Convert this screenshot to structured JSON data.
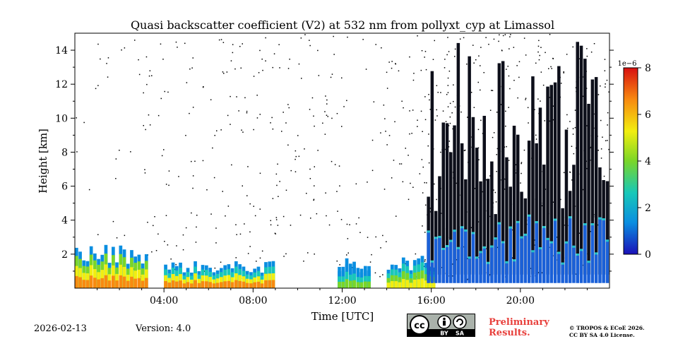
{
  "chart_data": {
    "type": "heatmap",
    "title": "Quasi backscatter coefficient (V2) at 532 nm from pollyxt_cyp at Limassol",
    "xlabel": "Time [UTC]",
    "ylabel": "Height [km]",
    "xlim": [
      0,
      24
    ],
    "ylim": [
      0,
      15
    ],
    "x_ticks": [
      4,
      8,
      12,
      16,
      20
    ],
    "x_tick_labels": [
      "04:00",
      "08:00",
      "12:00",
      "16:00",
      "20:00"
    ],
    "y_ticks": [
      2,
      4,
      6,
      8,
      10,
      12,
      14
    ],
    "y_tick_labels": [
      "2",
      "4",
      "6",
      "8",
      "10",
      "12",
      "14"
    ],
    "colorbar": {
      "min": 0,
      "max": 8,
      "scale_label": "1e−6",
      "ticks": [
        0,
        2,
        4,
        6,
        8
      ],
      "tick_labels": [
        "0",
        "2",
        "4",
        "6",
        "8"
      ],
      "colors": [
        "#1a10b8",
        "#0a8ee0",
        "#18c8b8",
        "#7ad628",
        "#f2ee10",
        "#f88a10",
        "#d81010"
      ]
    },
    "features": [
      {
        "name": "boundary-layer aerosol 00-03 UTC",
        "t0": 0.0,
        "t1": 3.3,
        "h0": 0.0,
        "h1": 2.6,
        "value": 6.5
      },
      {
        "name": "aerosol layer 04-09 UTC",
        "t0": 4.0,
        "t1": 9.0,
        "h0": 0.0,
        "h1": 1.6,
        "value": 5.5
      },
      {
        "name": "weak aerosol 11-13 UTC",
        "t0": 11.8,
        "t1": 13.3,
        "h0": 0.0,
        "h1": 1.8,
        "value": 3.5
      },
      {
        "name": "low aerosol 14-16 UTC",
        "t0": 14.0,
        "t1": 16.2,
        "h0": 0.0,
        "h1": 1.9,
        "value": 5.0
      },
      {
        "name": "cloud columns 16-24 UTC",
        "t0": 15.8,
        "t1": 24.0,
        "h0": 0.8,
        "h1": 15.0,
        "value": 1.0
      }
    ]
  },
  "footer": {
    "date": "2026-02-13",
    "version": "Version: 4.0",
    "preliminary_line1": "Preliminary",
    "preliminary_line2": "Results.",
    "copyright_line1": "© TROPOS & ECoE 2026.",
    "copyright_line2": "CC BY SA 4.0 License.",
    "license_by": "BY",
    "license_sa": "SA",
    "license_cc": "cc"
  }
}
